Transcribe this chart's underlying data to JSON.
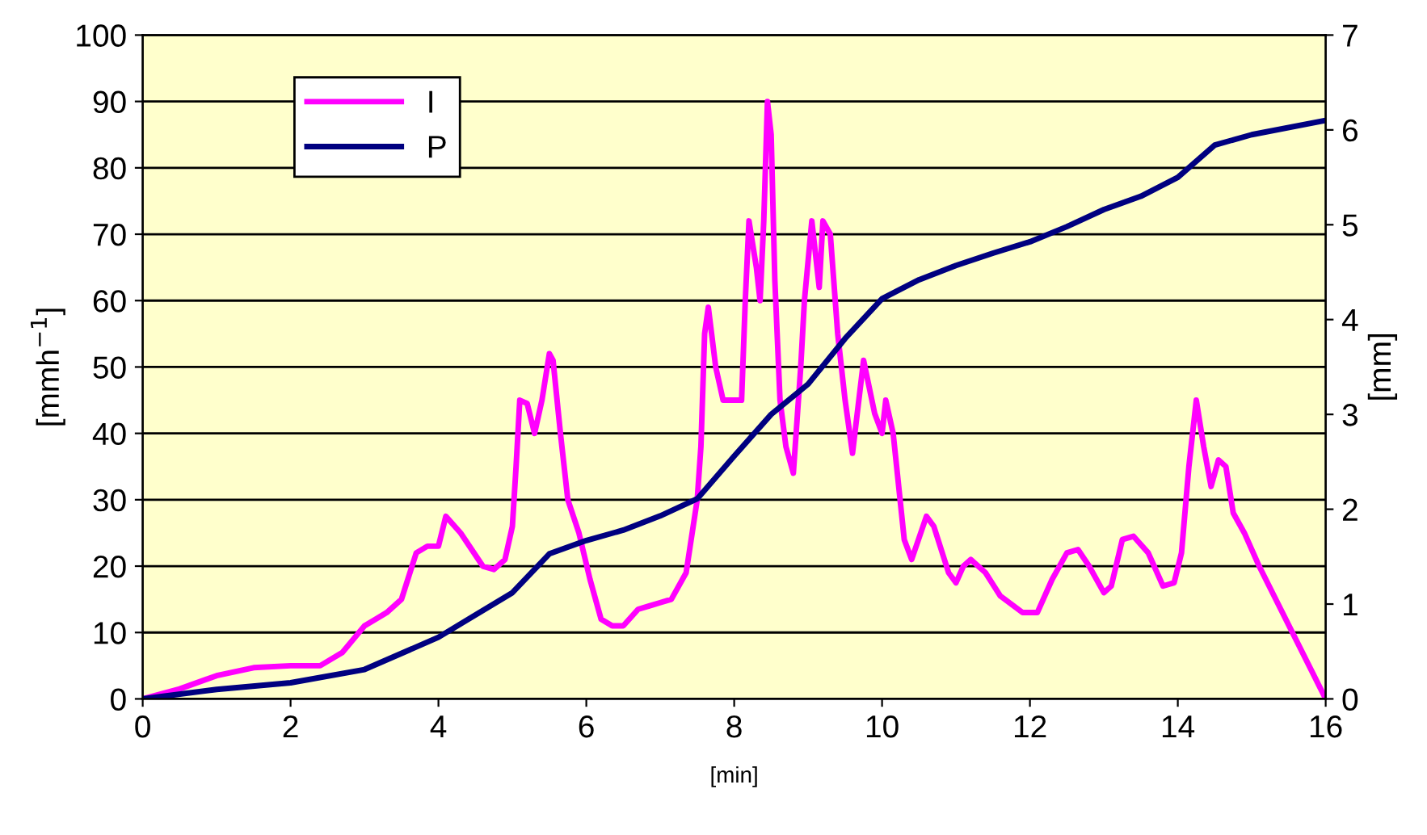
{
  "chart_data": {
    "type": "line",
    "xlabel": "[min]",
    "ylabel": "[mmh$^{−1}$]",
    "y2label": "[mm]",
    "xlim": [
      0,
      16
    ],
    "xticks": [
      0,
      2,
      4,
      6,
      8,
      10,
      12,
      14,
      16
    ],
    "ylim": [
      0,
      100
    ],
    "yticks": [
      0,
      10,
      20,
      30,
      40,
      50,
      60,
      70,
      80,
      90,
      100
    ],
    "y2lim": [
      0,
      7
    ],
    "y2ticks": [
      0,
      1,
      2,
      3,
      4,
      5,
      6,
      7
    ],
    "grid": "y",
    "legend": "top left",
    "marker": "none",
    "line_style": "solid",
    "series": [
      {
        "name": "I",
        "color": "#ff00ff",
        "x": [
          0,
          0.5,
          1,
          1.5,
          2,
          2.4,
          2.7,
          3,
          3.3,
          3.5,
          3.7,
          3.85,
          4,
          4.1,
          4.3,
          4.6,
          4.75,
          4.9,
          5.0,
          5.05,
          5.1,
          5.2,
          5.3,
          5.4,
          5.5,
          5.55,
          5.65,
          5.75,
          5.9,
          6.05,
          6.2,
          6.35,
          6.5,
          6.7,
          6.85,
          7.0,
          7.15,
          7.35,
          7.5,
          7.55,
          7.6,
          7.65,
          7.75,
          7.85,
          8.0,
          8.1,
          8.15,
          8.2,
          8.3,
          8.35,
          8.4,
          8.45,
          8.5,
          8.55,
          8.62,
          8.7,
          8.8,
          8.9,
          8.95,
          9.05,
          9.15,
          9.2,
          9.3,
          9.4,
          9.5,
          9.6,
          9.75,
          9.9,
          10.0,
          10.05,
          10.15,
          10.3,
          10.4,
          10.6,
          10.7,
          10.9,
          11.0,
          11.1,
          11.2,
          11.4,
          11.6,
          11.9,
          12.1,
          12.3,
          12.5,
          12.65,
          12.8,
          13.0,
          13.1,
          13.25,
          13.4,
          13.6,
          13.8,
          13.95,
          14.05,
          14.15,
          14.25,
          14.35,
          14.45,
          14.55,
          14.65,
          14.75,
          14.9,
          15.1,
          16
        ],
        "values": [
          0,
          1.5,
          3.5,
          4.7,
          5,
          5,
          7,
          11,
          13,
          15,
          22,
          23,
          23,
          27.5,
          25,
          20,
          19.5,
          21,
          26,
          35,
          45,
          44.5,
          40,
          45,
          52,
          51,
          40,
          30,
          25,
          18,
          12,
          11,
          11,
          13.5,
          14,
          14.5,
          15,
          19,
          30,
          38,
          55,
          59,
          50,
          45,
          45,
          45,
          60,
          72,
          65,
          60,
          72,
          90,
          85,
          63,
          45,
          38,
          34,
          50,
          60,
          72,
          62,
          72,
          70,
          55,
          45,
          37,
          51,
          43,
          40,
          45,
          40,
          24,
          21,
          27.5,
          26,
          19,
          17.5,
          20,
          21,
          19,
          15.5,
          13,
          13,
          18,
          22,
          22.5,
          20,
          16,
          17,
          24,
          24.5,
          22,
          17,
          17.5,
          22,
          35,
          45,
          38,
          32,
          36,
          35,
          28,
          25,
          20,
          0
        ]
      },
      {
        "name": "P",
        "color": "#000080",
        "axis": "y2",
        "x": [
          0,
          1,
          2,
          3,
          4,
          5,
          5.5,
          6,
          6.5,
          7,
          7.5,
          8,
          8.5,
          9,
          9.5,
          10,
          10.5,
          11,
          11.5,
          12,
          12.5,
          13,
          13.5,
          14,
          14.5,
          15,
          16
        ],
        "values": [
          0,
          0.1,
          0.17,
          0.31,
          0.65,
          1.12,
          1.53,
          1.67,
          1.78,
          1.93,
          2.11,
          2.56,
          3.0,
          3.32,
          3.8,
          4.22,
          4.42,
          4.57,
          4.7,
          4.82,
          4.98,
          5.16,
          5.3,
          5.5,
          5.84,
          5.95,
          6.1
        ]
      }
    ]
  }
}
